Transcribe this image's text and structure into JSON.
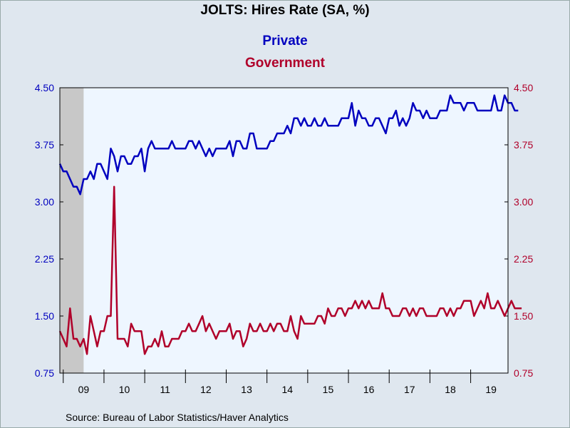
{
  "chart_data": {
    "type": "line",
    "title": "JOLTS: Hires Rate (SA, %)",
    "source": "Source:  Bureau of Labor Statistics/Haver Analytics",
    "x_tick_labels": [
      "09",
      "10",
      "11",
      "12",
      "13",
      "14",
      "15",
      "16",
      "17",
      "18",
      "19"
    ],
    "x_start": "2008-12",
    "x_end": "2019-11",
    "y_left": {
      "ticks": [
        "0.75",
        "1.50",
        "2.25",
        "3.00",
        "3.75",
        "4.50"
      ],
      "range": [
        0.75,
        4.5
      ]
    },
    "y_right": {
      "ticks": [
        "0.75",
        "1.50",
        "2.25",
        "3.00",
        "3.75",
        "4.50"
      ],
      "range": [
        0.75,
        4.5
      ]
    },
    "recession_shade": {
      "start": "2008-12",
      "end": "2009-06"
    },
    "series": [
      {
        "name": "Private",
        "axis": "left",
        "color": "#0000bf",
        "values": [
          3.5,
          3.4,
          3.4,
          3.3,
          3.2,
          3.2,
          3.1,
          3.3,
          3.3,
          3.4,
          3.3,
          3.5,
          3.5,
          3.4,
          3.3,
          3.7,
          3.6,
          3.4,
          3.6,
          3.6,
          3.5,
          3.5,
          3.6,
          3.6,
          3.7,
          3.4,
          3.7,
          3.8,
          3.7,
          3.7,
          3.7,
          3.7,
          3.7,
          3.8,
          3.7,
          3.7,
          3.7,
          3.7,
          3.8,
          3.8,
          3.7,
          3.8,
          3.7,
          3.6,
          3.7,
          3.6,
          3.7,
          3.7,
          3.7,
          3.7,
          3.8,
          3.6,
          3.8,
          3.8,
          3.7,
          3.7,
          3.9,
          3.9,
          3.7,
          3.7,
          3.7,
          3.7,
          3.8,
          3.8,
          3.9,
          3.9,
          3.9,
          4.0,
          3.9,
          4.1,
          4.1,
          4.0,
          4.1,
          4.0,
          4.0,
          4.1,
          4.0,
          4.0,
          4.1,
          4.0,
          4.0,
          4.0,
          4.0,
          4.1,
          4.1,
          4.1,
          4.3,
          4.0,
          4.2,
          4.1,
          4.1,
          4.0,
          4.0,
          4.1,
          4.1,
          4.0,
          3.9,
          4.1,
          4.1,
          4.2,
          4.0,
          4.1,
          4.0,
          4.1,
          4.3,
          4.2,
          4.2,
          4.1,
          4.2,
          4.1,
          4.1,
          4.1,
          4.2,
          4.2,
          4.2,
          4.4,
          4.3,
          4.3,
          4.3,
          4.2,
          4.3,
          4.3,
          4.3,
          4.2,
          4.2,
          4.2,
          4.2,
          4.2,
          4.4,
          4.2,
          4.2,
          4.4,
          4.3,
          4.3,
          4.2,
          4.2
        ]
      },
      {
        "name": "Government",
        "axis": "right",
        "color": "#b0002a",
        "values": [
          1.3,
          1.2,
          1.1,
          1.6,
          1.2,
          1.2,
          1.1,
          1.2,
          1.0,
          1.5,
          1.3,
          1.1,
          1.3,
          1.3,
          1.5,
          1.5,
          3.2,
          1.2,
          1.2,
          1.2,
          1.1,
          1.4,
          1.3,
          1.3,
          1.3,
          1.0,
          1.1,
          1.1,
          1.2,
          1.1,
          1.3,
          1.1,
          1.1,
          1.2,
          1.2,
          1.2,
          1.3,
          1.3,
          1.4,
          1.3,
          1.3,
          1.4,
          1.5,
          1.3,
          1.4,
          1.3,
          1.2,
          1.3,
          1.3,
          1.3,
          1.4,
          1.2,
          1.3,
          1.3,
          1.1,
          1.2,
          1.4,
          1.3,
          1.3,
          1.4,
          1.3,
          1.3,
          1.4,
          1.3,
          1.4,
          1.4,
          1.3,
          1.3,
          1.5,
          1.3,
          1.2,
          1.5,
          1.4,
          1.4,
          1.4,
          1.4,
          1.5,
          1.5,
          1.4,
          1.6,
          1.5,
          1.5,
          1.6,
          1.6,
          1.5,
          1.6,
          1.6,
          1.7,
          1.6,
          1.7,
          1.6,
          1.7,
          1.6,
          1.6,
          1.6,
          1.8,
          1.6,
          1.6,
          1.5,
          1.5,
          1.5,
          1.6,
          1.6,
          1.5,
          1.6,
          1.5,
          1.6,
          1.6,
          1.5,
          1.5,
          1.5,
          1.5,
          1.6,
          1.6,
          1.5,
          1.6,
          1.5,
          1.6,
          1.6,
          1.7,
          1.7,
          1.7,
          1.5,
          1.6,
          1.7,
          1.6,
          1.8,
          1.6,
          1.6,
          1.7,
          1.6,
          1.5,
          1.6,
          1.7,
          1.6,
          1.6,
          1.6
        ]
      }
    ]
  }
}
